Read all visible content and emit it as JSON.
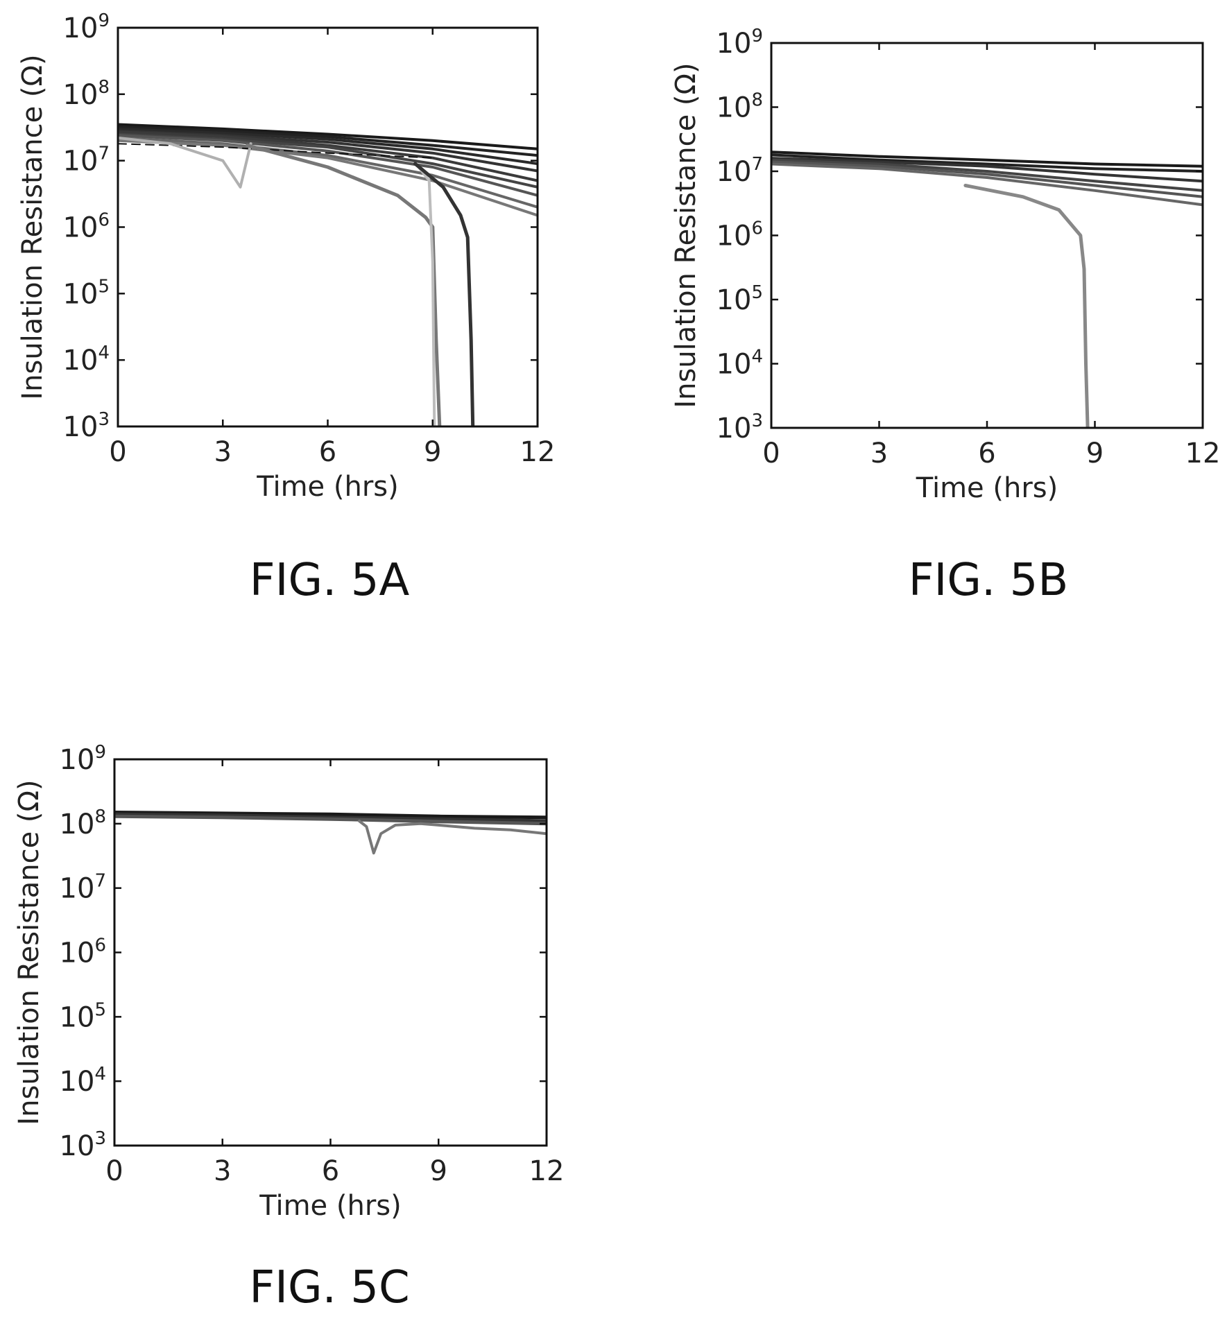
{
  "chart_data": [
    {
      "type": "line",
      "figure_label": "FIG. 5A",
      "xlabel": "Time (hrs)",
      "ylabel": "Insulation Resistance (Ω)",
      "xlim": [
        0,
        12
      ],
      "ylim": [
        1000,
        1000000000
      ],
      "yscale": "log",
      "grid": false,
      "xticks": [
        "0",
        "3",
        "6",
        "9",
        "12"
      ],
      "yticks": [
        {
          "base": "10",
          "exp": "3"
        },
        {
          "base": "10",
          "exp": "4"
        },
        {
          "base": "10",
          "exp": "5"
        },
        {
          "base": "10",
          "exp": "6"
        },
        {
          "base": "10",
          "exp": "7"
        },
        {
          "base": "10",
          "exp": "8"
        },
        {
          "base": "10",
          "exp": "9"
        }
      ],
      "series": [
        {
          "color": "#1a1a1a",
          "width": 4,
          "x": [
            0,
            3,
            6,
            9,
            12
          ],
          "y": [
            35000000,
            30000000,
            25000000,
            20000000,
            15000000
          ]
        },
        {
          "color": "#222222",
          "width": 4,
          "x": [
            0,
            3,
            6,
            9,
            12
          ],
          "y": [
            32000000,
            28000000,
            23000000,
            17000000,
            12000000
          ]
        },
        {
          "color": "#2a2a2a",
          "width": 4,
          "x": [
            0,
            3,
            6,
            9,
            12
          ],
          "y": [
            30000000,
            26000000,
            21000000,
            15000000,
            9000000
          ]
        },
        {
          "color": "#333333",
          "width": 4,
          "x": [
            0,
            3,
            6,
            9,
            12
          ],
          "y": [
            28000000,
            24000000,
            19000000,
            13000000,
            7000000
          ]
        },
        {
          "color": "#3a3a3a",
          "width": 4,
          "x": [
            0,
            3,
            6,
            9,
            12
          ],
          "y": [
            27000000,
            23000000,
            17000000,
            11000000,
            5000000
          ]
        },
        {
          "color": "#444444",
          "width": 4,
          "x": [
            0,
            3,
            6,
            9,
            12
          ],
          "y": [
            25000000,
            21000000,
            16000000,
            9000000,
            4000000
          ]
        },
        {
          "color": "#555555",
          "width": 4,
          "x": [
            0,
            3,
            6,
            9,
            12
          ],
          "y": [
            24000000,
            20000000,
            14000000,
            8000000,
            3000000
          ]
        },
        {
          "color": "#666666",
          "width": 4,
          "x": [
            0,
            3,
            6,
            9,
            12
          ],
          "y": [
            22000000,
            18000000,
            12000000,
            6000000,
            2000000
          ]
        },
        {
          "color": "#777777",
          "width": 4,
          "x": [
            0,
            3,
            6,
            9,
            12
          ],
          "y": [
            20000000,
            17000000,
            11000000,
            5000000,
            1500000
          ]
        },
        {
          "color": "#111111",
          "width": 2,
          "dash": "12,8",
          "x": [
            0,
            3,
            6,
            9
          ],
          "y": [
            18000000,
            16000000,
            13000000,
            11000000
          ]
        },
        {
          "color": "#b0b0b0",
          "width": 4,
          "x": [
            0,
            1.5,
            3,
            3.5,
            3.8
          ],
          "y": [
            22000000,
            18000000,
            10000000,
            4000000,
            18000000
          ]
        },
        {
          "color": "#777777",
          "width": 5,
          "x": [
            3.7,
            6,
            8,
            8.8,
            9.0,
            9.1,
            9.2
          ],
          "y": [
            17000000,
            8000000,
            3000000,
            1400000,
            1000000,
            20000,
            1000
          ]
        },
        {
          "color": "#bdbdbd",
          "width": 4,
          "x": [
            8.6,
            8.9,
            9.0,
            9.05
          ],
          "y": [
            8000000,
            5000000,
            300000,
            1000
          ]
        },
        {
          "color": "#333333",
          "width": 5,
          "x": [
            8.5,
            9.3,
            9.8,
            10.0,
            10.1,
            10.15
          ],
          "y": [
            9000000,
            4000000,
            1500000,
            700000,
            20000,
            1000
          ]
        }
      ]
    },
    {
      "type": "line",
      "figure_label": "FIG. 5B",
      "xlabel": "Time (hrs)",
      "ylabel": "Insulation Resistance (Ω)",
      "xlim": [
        0,
        12
      ],
      "ylim": [
        1000,
        1000000000
      ],
      "yscale": "log",
      "grid": false,
      "xticks": [
        "0",
        "3",
        "6",
        "9",
        "12"
      ],
      "yticks": [
        {
          "base": "10",
          "exp": "3"
        },
        {
          "base": "10",
          "exp": "4"
        },
        {
          "base": "10",
          "exp": "5"
        },
        {
          "base": "10",
          "exp": "6"
        },
        {
          "base": "10",
          "exp": "7"
        },
        {
          "base": "10",
          "exp": "8"
        },
        {
          "base": "10",
          "exp": "9"
        }
      ],
      "series": [
        {
          "color": "#1a1a1a",
          "width": 4,
          "x": [
            0,
            3,
            6,
            9,
            12
          ],
          "y": [
            20000000,
            17000000,
            15000000,
            13000000,
            12000000
          ]
        },
        {
          "color": "#222222",
          "width": 4,
          "x": [
            0,
            3,
            6,
            9,
            12
          ],
          "y": [
            18000000,
            15000000,
            13000000,
            11000000,
            10000000
          ]
        },
        {
          "color": "#333333",
          "width": 4,
          "x": [
            0,
            3,
            6,
            9,
            12
          ],
          "y": [
            16000000,
            14000000,
            12000000,
            9000000,
            7000000
          ]
        },
        {
          "color": "#444444",
          "width": 4,
          "x": [
            0,
            3,
            6,
            9,
            12
          ],
          "y": [
            15000000,
            13000000,
            10000000,
            7000000,
            5000000
          ]
        },
        {
          "color": "#555555",
          "width": 4,
          "x": [
            0,
            3,
            6,
            9,
            12
          ],
          "y": [
            14000000,
            12000000,
            9000000,
            6000000,
            4000000
          ]
        },
        {
          "color": "#666666",
          "width": 4,
          "x": [
            0,
            3,
            6,
            9,
            12
          ],
          "y": [
            13000000,
            11000000,
            8000000,
            5000000,
            3000000
          ]
        },
        {
          "color": "#888888",
          "width": 5,
          "x": [
            5.4,
            7,
            8,
            8.6,
            8.7,
            8.75,
            8.8
          ],
          "y": [
            6000000,
            4000000,
            2500000,
            1000000,
            300000,
            10000,
            1000
          ]
        }
      ]
    },
    {
      "type": "line",
      "figure_label": "FIG. 5C",
      "xlabel": "Time (hrs)",
      "ylabel": "Insulation Resistance (Ω)",
      "xlim": [
        0,
        12
      ],
      "ylim": [
        1000,
        1000000000
      ],
      "yscale": "log",
      "grid": false,
      "xticks": [
        "0",
        "3",
        "6",
        "9",
        "12"
      ],
      "yticks": [
        {
          "base": "10",
          "exp": "3"
        },
        {
          "base": "10",
          "exp": "4"
        },
        {
          "base": "10",
          "exp": "5"
        },
        {
          "base": "10",
          "exp": "6"
        },
        {
          "base": "10",
          "exp": "7"
        },
        {
          "base": "10",
          "exp": "8"
        },
        {
          "base": "10",
          "exp": "9"
        }
      ],
      "series": [
        {
          "color": "#1a1a1a",
          "width": 5,
          "x": [
            0,
            3,
            6,
            9,
            12
          ],
          "y": [
            150000000,
            145000000,
            140000000,
            130000000,
            125000000
          ]
        },
        {
          "color": "#333333",
          "width": 5,
          "x": [
            0,
            3,
            6,
            9,
            12
          ],
          "y": [
            140000000,
            135000000,
            125000000,
            118000000,
            110000000
          ]
        },
        {
          "color": "#555555",
          "width": 5,
          "x": [
            0,
            3,
            6,
            9,
            12
          ],
          "y": [
            130000000,
            125000000,
            118000000,
            108000000,
            100000000
          ]
        },
        {
          "color": "#777777",
          "width": 4,
          "x": [
            6.8,
            7.0,
            7.2,
            7.4,
            7.8,
            8.5,
            9,
            10,
            11,
            12
          ],
          "y": [
            110000000,
            90000000,
            35000000,
            70000000,
            95000000,
            100000000,
            95000000,
            85000000,
            80000000,
            70000000
          ]
        }
      ]
    }
  ]
}
